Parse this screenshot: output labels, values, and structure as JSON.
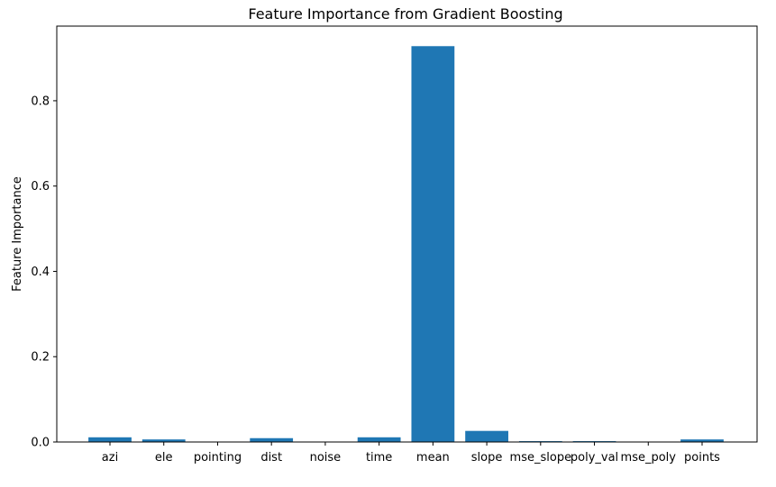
{
  "chart_data": {
    "type": "bar",
    "title": "Feature Importance from Gradient Boosting",
    "xlabel": "",
    "ylabel": "Feature Importance",
    "categories": [
      "azi",
      "ele",
      "pointing",
      "dist",
      "noise",
      "time",
      "mean",
      "slope",
      "mse_slope",
      "poly_val",
      "mse_poly",
      "points"
    ],
    "values": [
      0.011,
      0.006,
      0.0003,
      0.009,
      0.0003,
      0.011,
      0.928,
      0.026,
      0.002,
      0.002,
      0.0005,
      0.006
    ],
    "ylim": [
      0,
      0.975
    ],
    "yticks": [
      0.0,
      0.2,
      0.4,
      0.6,
      0.8
    ],
    "ytick_labels": [
      "0.0",
      "0.2",
      "0.4",
      "0.6",
      "0.8"
    ],
    "grid": false,
    "legend": "none",
    "colors": {
      "bar": "#1f77b4",
      "axes": "#000000",
      "background": "#ffffff"
    }
  }
}
